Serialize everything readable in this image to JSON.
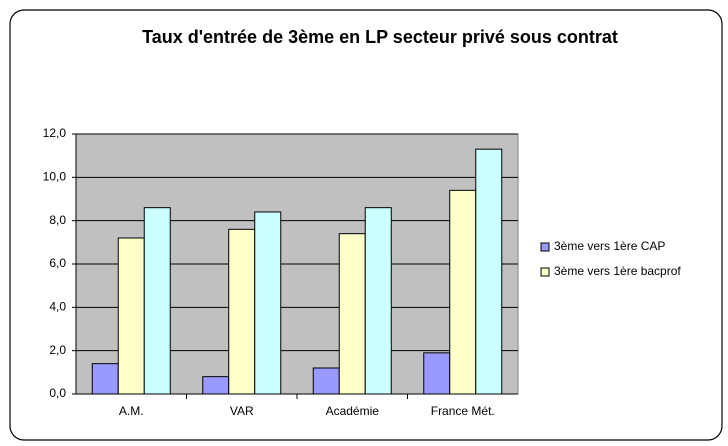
{
  "chart_data": {
    "type": "bar",
    "title": "Taux d'entrée de 3ème en LP secteur privé sous contrat",
    "categories": [
      "A.M.",
      "VAR",
      "Académie",
      "France Mét."
    ],
    "series": [
      {
        "name": "3ème vers 1ère CAP",
        "color": "#9999ff",
        "values": [
          1.4,
          0.8,
          1.2,
          1.9
        ]
      },
      {
        "name": "3ème vers 1ère bacprof",
        "color": "#ffffcc",
        "values": [
          7.2,
          7.6,
          7.4,
          9.4
        ]
      },
      {
        "color": "#ccffff",
        "values": [
          8.6,
          8.4,
          8.6,
          11.3
        ]
      }
    ],
    "ylim": [
      0,
      12
    ],
    "yticks": [
      {
        "value": 0,
        "label": "0,0"
      },
      {
        "value": 2,
        "label": "2,0"
      },
      {
        "value": 4,
        "label": "4,0"
      },
      {
        "value": 6,
        "label": "6,0"
      },
      {
        "value": 8,
        "label": "8,0"
      },
      {
        "value": 10,
        "label": "10,0"
      },
      {
        "value": 12,
        "label": "12,0"
      }
    ],
    "grid": true,
    "legend": "right"
  }
}
